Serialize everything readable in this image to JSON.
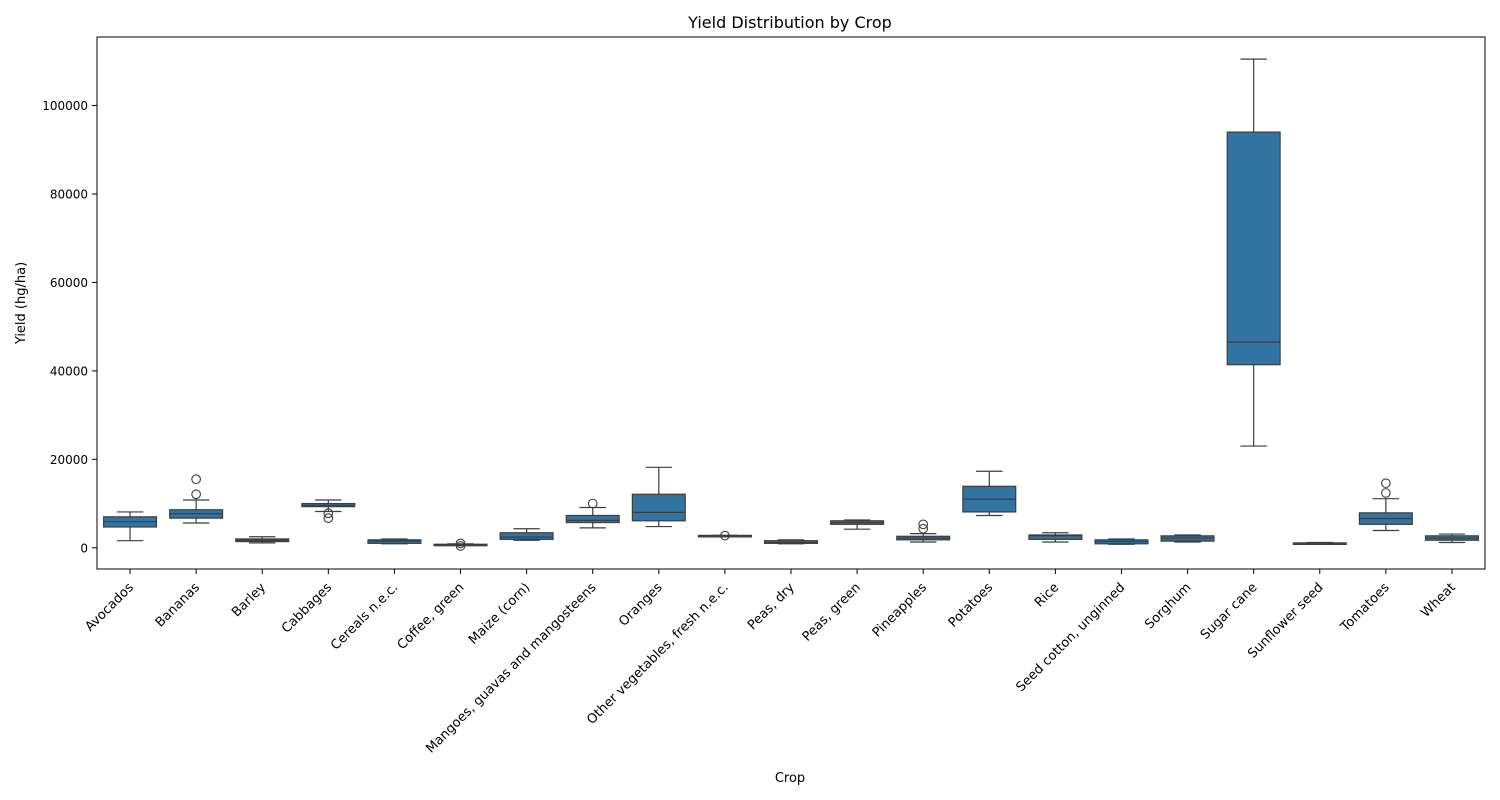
{
  "chart_data": {
    "type": "box",
    "title": "Yield Distribution by Crop",
    "xlabel": "Crop",
    "ylabel": "Yield (hg/ha)",
    "ylim": [
      -4800,
      115500
    ],
    "yticks": [
      0,
      20000,
      40000,
      60000,
      80000,
      100000
    ],
    "ytick_labels": [
      "0",
      "20000",
      "40000",
      "60000",
      "80000",
      "100000"
    ],
    "grid": false,
    "box_color": "#3274a1",
    "edge_color": "#3d3d3d",
    "categories": [
      "Avocados",
      "Bananas",
      "Barley",
      "Cabbages",
      "Cereals n.e.c.",
      "Coffee, green",
      "Maize (corn)",
      "Mangoes, guavas and mangosteens",
      "Oranges",
      "Other vegetables, fresh n.e.c.",
      "Peas, dry",
      "Peas, green",
      "Pineapples",
      "Potatoes",
      "Rice",
      "Seed cotton, unginned",
      "Sorghum",
      "Sugar cane",
      "Sunflower seed",
      "Tomatoes",
      "Wheat"
    ],
    "boxes": [
      {
        "whisker_low": 1600,
        "q1": 4700,
        "median": 5900,
        "q3": 7000,
        "whisker_high": 8100,
        "outliers": []
      },
      {
        "whisker_low": 5600,
        "q1": 6700,
        "median": 7700,
        "q3": 8600,
        "whisker_high": 10800,
        "outliers": [
          12100,
          15500
        ]
      },
      {
        "whisker_low": 1100,
        "q1": 1400,
        "median": 1700,
        "q3": 2000,
        "whisker_high": 2500,
        "outliers": []
      },
      {
        "whisker_low": 8200,
        "q1": 9300,
        "median": 9600,
        "q3": 10000,
        "whisker_high": 10800,
        "outliers": [
          7800,
          6700
        ]
      },
      {
        "whisker_low": 900,
        "q1": 1000,
        "median": 1500,
        "q3": 1800,
        "whisker_high": 2000,
        "outliers": []
      },
      {
        "whisker_low": 550,
        "q1": 650,
        "median": 700,
        "q3": 800,
        "whisker_high": 900,
        "outliers": [
          400,
          1000
        ]
      },
      {
        "whisker_low": 1700,
        "q1": 1900,
        "median": 2400,
        "q3": 3400,
        "whisker_high": 4300,
        "outliers": []
      },
      {
        "whisker_low": 4500,
        "q1": 5700,
        "median": 6200,
        "q3": 7300,
        "whisker_high": 9100,
        "outliers": [
          10000
        ]
      },
      {
        "whisker_low": 4800,
        "q1": 6100,
        "median": 8000,
        "q3": 12100,
        "whisker_high": 18200,
        "outliers": []
      },
      {
        "whisker_low": 2700,
        "q1": 2700,
        "median": 2750,
        "q3": 2800,
        "whisker_high": 2800,
        "outliers": [
          2750
        ]
      },
      {
        "whisker_low": 900,
        "q1": 1000,
        "median": 1200,
        "q3": 1600,
        "whisker_high": 1800,
        "outliers": []
      },
      {
        "whisker_low": 4200,
        "q1": 5300,
        "median": 5700,
        "q3": 6100,
        "whisker_high": 6300,
        "outliers": []
      },
      {
        "whisker_low": 1300,
        "q1": 1800,
        "median": 2200,
        "q3": 2600,
        "whisker_high": 3200,
        "outliers": [
          4300,
          5300
        ]
      },
      {
        "whisker_low": 7300,
        "q1": 8100,
        "median": 11000,
        "q3": 13900,
        "whisker_high": 17300,
        "outliers": []
      },
      {
        "whisker_low": 1300,
        "q1": 1900,
        "median": 2700,
        "q3": 2900,
        "whisker_high": 3400,
        "outliers": []
      },
      {
        "whisker_low": 800,
        "q1": 900,
        "median": 1400,
        "q3": 1800,
        "whisker_high": 2000,
        "outliers": []
      },
      {
        "whisker_low": 1300,
        "q1": 1500,
        "median": 2200,
        "q3": 2700,
        "whisker_high": 2900,
        "outliers": []
      },
      {
        "whisker_low": 23000,
        "q1": 41400,
        "median": 46500,
        "q3": 94000,
        "whisker_high": 110500,
        "outliers": []
      },
      {
        "whisker_low": 850,
        "q1": 950,
        "median": 1050,
        "q3": 1100,
        "whisker_high": 1200,
        "outliers": []
      },
      {
        "whisker_low": 3900,
        "q1": 5300,
        "median": 6600,
        "q3": 7900,
        "whisker_high": 11100,
        "outliers": [
          12400,
          14600
        ]
      },
      {
        "whisker_low": 1200,
        "q1": 1700,
        "median": 2200,
        "q3": 2700,
        "whisker_high": 3100,
        "outliers": []
      }
    ]
  }
}
